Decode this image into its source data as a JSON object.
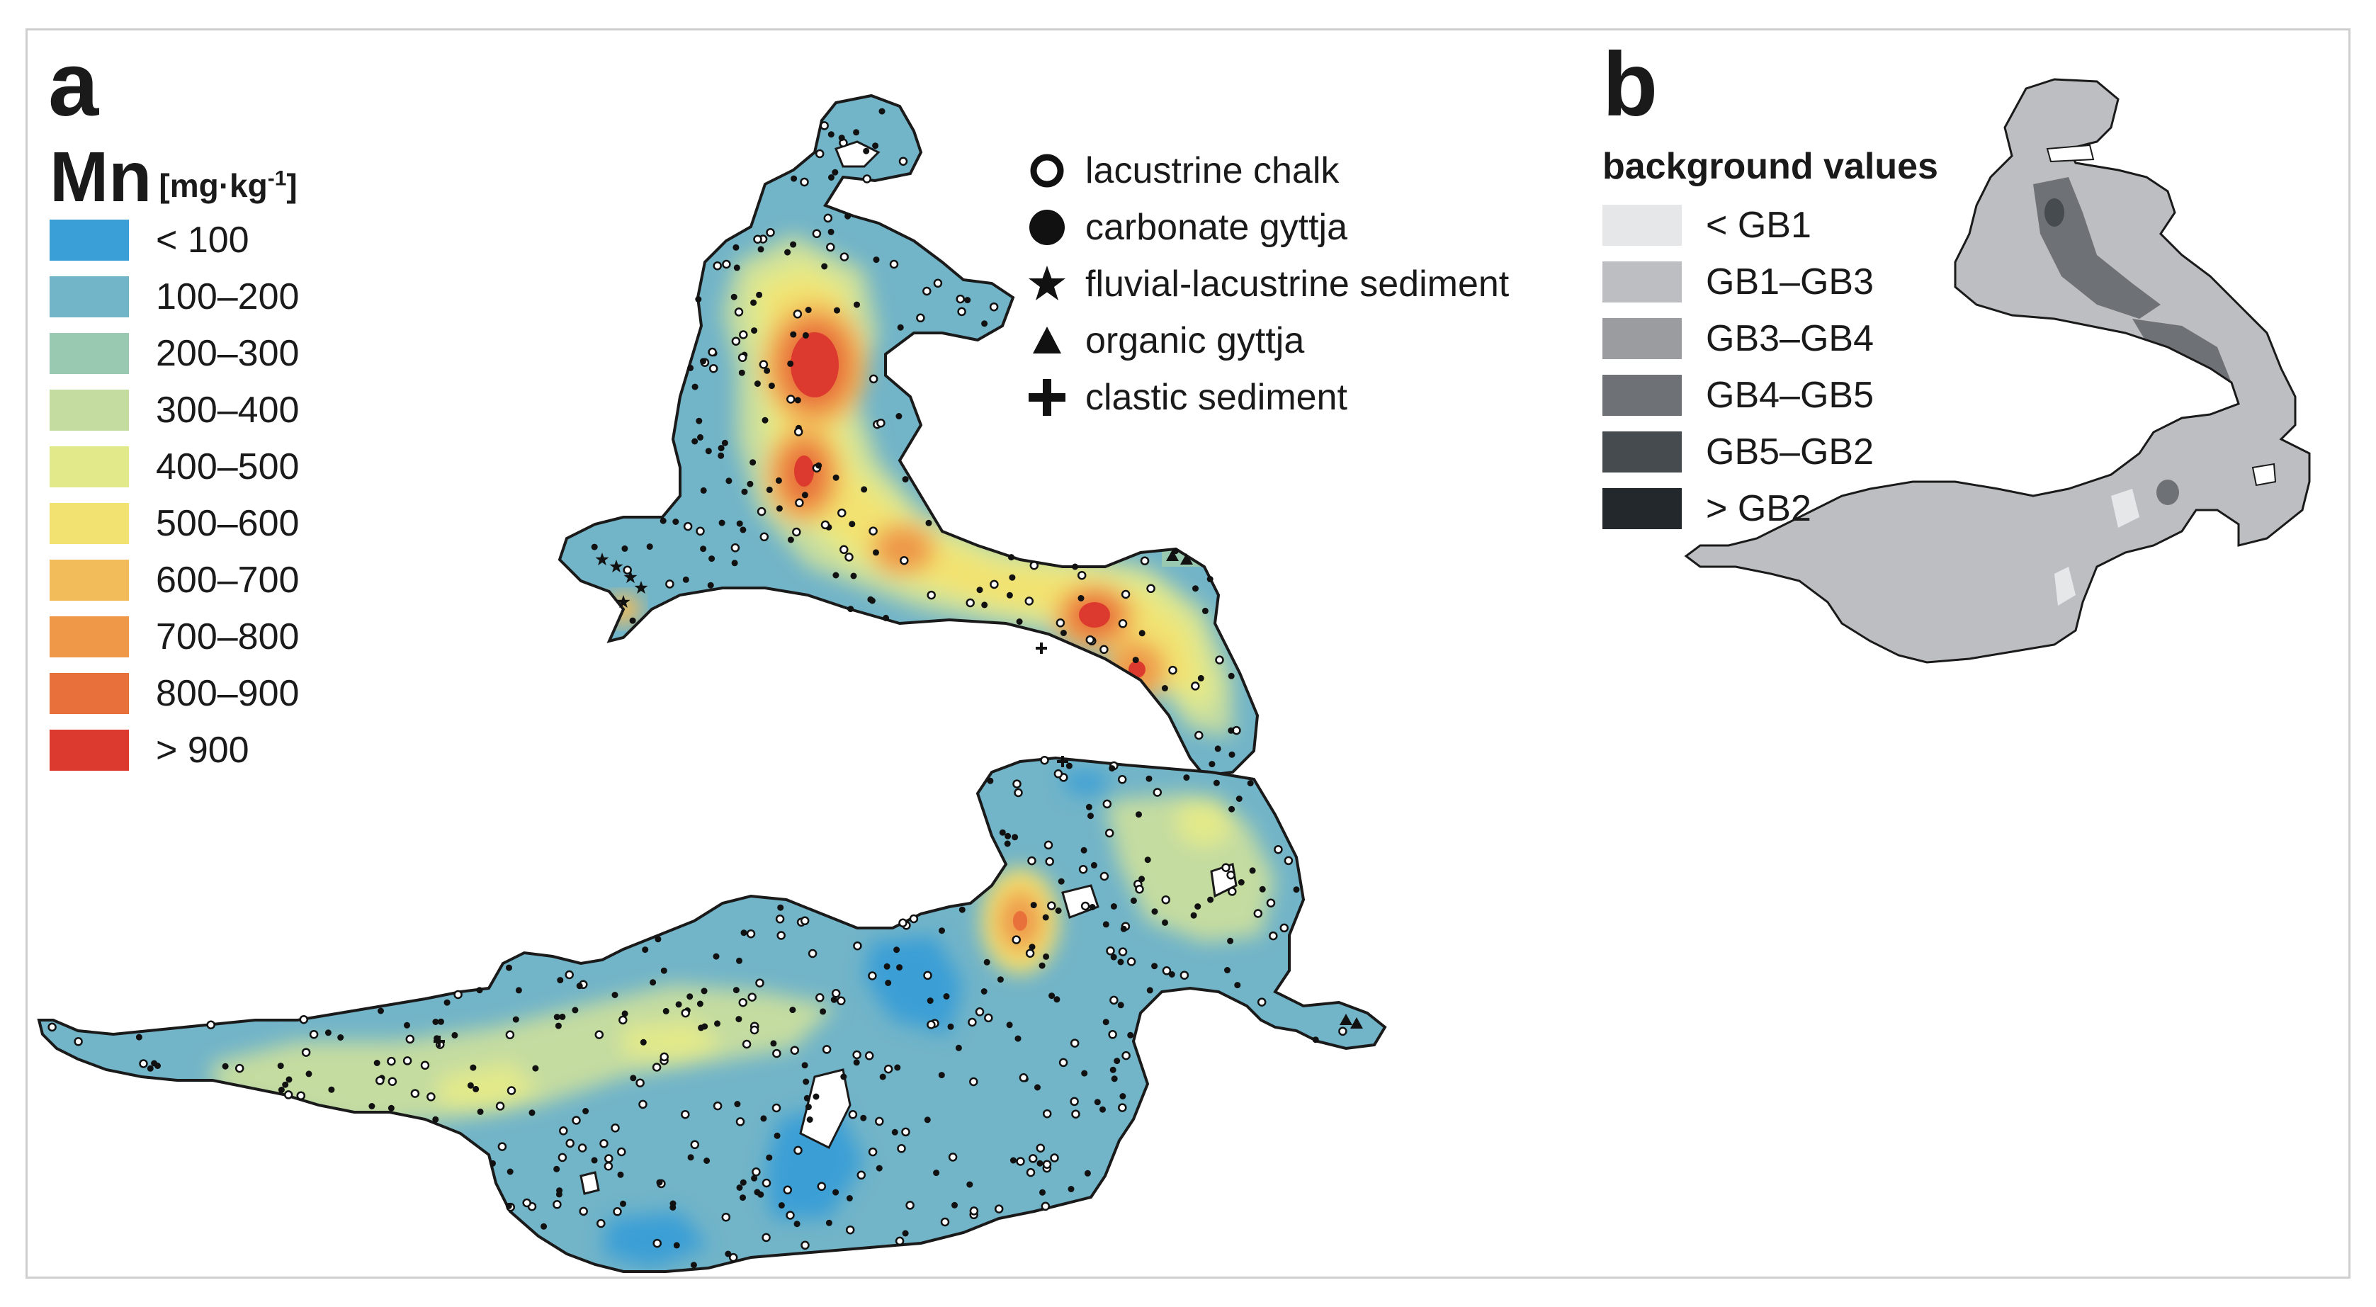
{
  "panel_a": {
    "letter": "a",
    "legend": {
      "title": "Mn",
      "unit": "[mg·kg",
      "unit_exp": "-1",
      "unit_close": "]",
      "classes": [
        {
          "label": "< 100",
          "color": "#3a9fd6"
        },
        {
          "label": "100–200",
          "color": "#72b4c8"
        },
        {
          "label": "200–300",
          "color": "#99c9b0"
        },
        {
          "label": "300–400",
          "color": "#c4dca0"
        },
        {
          "label": "400–500",
          "color": "#e2e98a"
        },
        {
          "label": "500–600",
          "color": "#f2e271"
        },
        {
          "label": "600–700",
          "color": "#f2bc5a"
        },
        {
          "label": "700–800",
          "color": "#ee9848"
        },
        {
          "label": "800–900",
          "color": "#e8703a"
        },
        {
          "label": "> 900",
          "color": "#dc3a2e"
        }
      ]
    },
    "sediment_types": [
      {
        "label": "lacustrine chalk",
        "symbol": "open-circle-icon"
      },
      {
        "label": "carbonate gyttja",
        "symbol": "filled-circle-icon"
      },
      {
        "label": "fluvial-lacustrine sediment",
        "symbol": "star-icon"
      },
      {
        "label": "organic gyttja",
        "symbol": "triangle-icon"
      },
      {
        "label": "clastic sediment",
        "symbol": "cross-icon"
      }
    ]
  },
  "panel_b": {
    "letter": "b",
    "legend": {
      "title": "background values",
      "classes": [
        {
          "label": "< GB1",
          "color": "#e6e7e9"
        },
        {
          "label": "GB1–GB3",
          "color": "#bdbec1"
        },
        {
          "label": "GB3–GB4",
          "color": "#9a9c9f"
        },
        {
          "label": "GB4–GB5",
          "color": "#6e7175"
        },
        {
          "label": "GB5–GB2",
          "color": "#464b50"
        },
        {
          "label": "> GB2",
          "color": "#23282c"
        }
      ]
    }
  },
  "colors": {
    "outline": "#1a1a1a",
    "frame": "#cfcfcf"
  }
}
